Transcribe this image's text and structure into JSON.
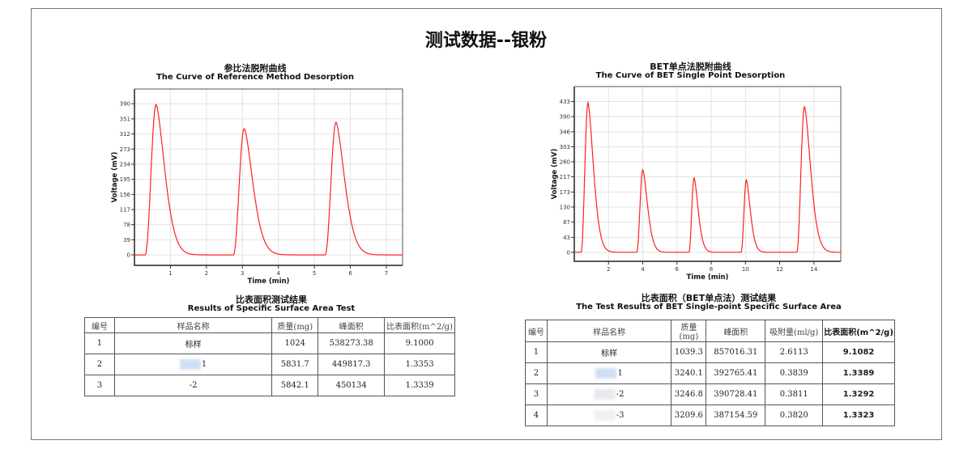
{
  "title": "测试数据--银粉",
  "chart_data": [
    {
      "type": "line",
      "title_cn": "参比法脱附曲线",
      "title": "The Curve of Reference Method Desorption",
      "xlabel": "Time (min)",
      "ylabel": "Voltage (mV)",
      "xlim": [
        0,
        7.45
      ],
      "ylim": [
        -27,
        428
      ],
      "xticks": [
        1,
        2,
        3,
        4,
        5,
        6,
        7
      ],
      "yticks": [
        0,
        39,
        78,
        117,
        156,
        195,
        234,
        273,
        312,
        351,
        390
      ],
      "grid": true,
      "color": "#ff2020",
      "peaks": [
        {
          "start": 0.3,
          "time": 0.6,
          "voltage": 388
        },
        {
          "start": 2.75,
          "time": 3.05,
          "voltage": 326
        },
        {
          "start": 5.3,
          "time": 5.6,
          "voltage": 342
        }
      ]
    },
    {
      "type": "line",
      "title_cn": "BET单点法脱附曲线",
      "title": "The Curve of BET Single Point Desorption",
      "xlabel": "Time (min)",
      "ylabel": "Voltage (mV)",
      "xlim": [
        0,
        15.57
      ],
      "ylim": [
        -26,
        476
      ],
      "xticks": [
        2,
        4,
        6,
        8,
        10,
        12,
        14
      ],
      "yticks": [
        0,
        43,
        87,
        130,
        173,
        217,
        260,
        303,
        346,
        390,
        433
      ],
      "grid": true,
      "color": "#ff2020",
      "peaks": [
        {
          "start": 0.4,
          "time": 0.8,
          "voltage": 430
        },
        {
          "start": 3.65,
          "time": 4.0,
          "voltage": 237
        },
        {
          "start": 6.7,
          "time": 7.0,
          "voltage": 214
        },
        {
          "start": 9.75,
          "time": 10.05,
          "voltage": 208
        },
        {
          "start": 13.0,
          "time": 13.45,
          "voltage": 418
        }
      ]
    }
  ],
  "table1": {
    "title_cn": "比表面积测试结果",
    "title": "Results of Specific Surface Area Test",
    "headers": [
      "编号",
      "样品名称",
      "质量(mg)",
      "峰面积",
      "比表面积(m^2/g)"
    ],
    "rows": [
      [
        "1",
        "标样",
        "1024",
        "538273.38",
        "9.1000"
      ],
      [
        "2",
        "1",
        "5831.7",
        "449817.3",
        "1.3353"
      ],
      [
        "3",
        "-2",
        "5842.1",
        "450134",
        "1.3339"
      ]
    ]
  },
  "table2": {
    "title_cn": "比表面积（BET单点法）测试结果",
    "title": "The Test Results of BET Single-point Specific Surface Area",
    "headers": [
      "编号",
      "样品名称",
      "质量(mg)",
      "峰面积",
      "吸附量(ml/g)",
      "比表面积(m^2/g)"
    ],
    "rows": [
      [
        "1",
        "标样",
        "1039.3",
        "857016.31",
        "2.6113",
        "9.1082"
      ],
      [
        "2",
        "1",
        "3240.1",
        "392765.41",
        "0.3839",
        "1.3389"
      ],
      [
        "3",
        "-2",
        "3246.8",
        "390728.41",
        "0.3811",
        "1.3292"
      ],
      [
        "4",
        "-3",
        "3209.6",
        "387154.59",
        "0.3820",
        "1.3323"
      ]
    ]
  }
}
